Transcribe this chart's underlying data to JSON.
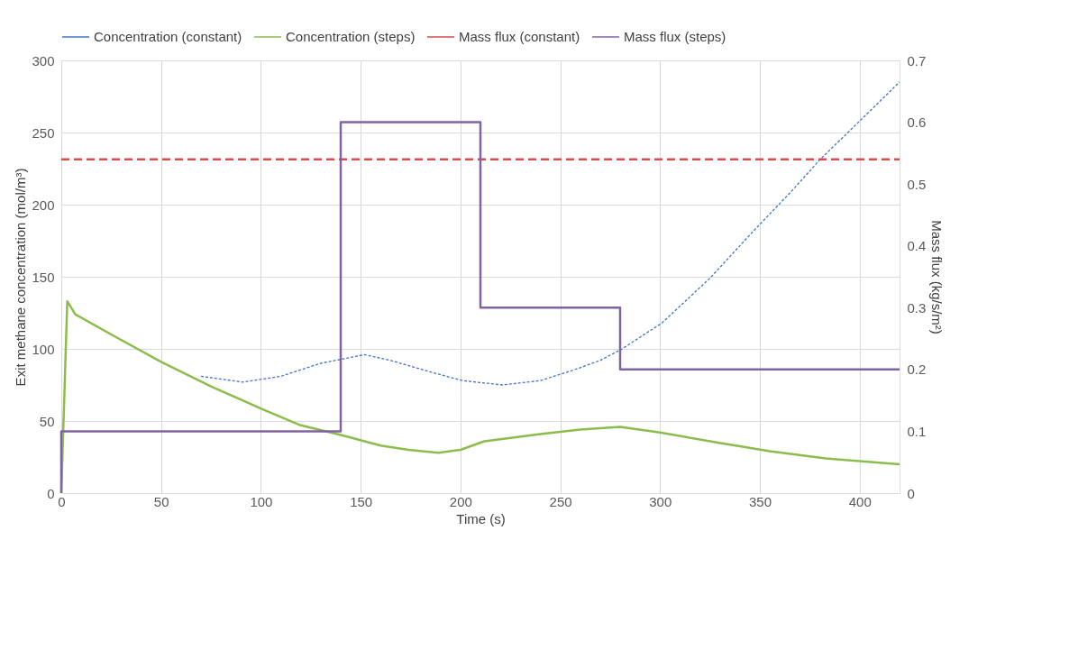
{
  "chart_data": {
    "type": "line",
    "xlabel": "Time (s)",
    "ylabel": "Exit methane concentration (mol/m³)",
    "y2label": "Mass flux (kg/s/m²)",
    "xlim": [
      0,
      420
    ],
    "xticks": [
      0,
      50,
      100,
      150,
      200,
      250,
      300,
      350,
      400
    ],
    "ylim": [
      0,
      300
    ],
    "yticks": [
      0,
      50,
      100,
      150,
      200,
      250,
      300
    ],
    "y2lim": [
      0,
      0.7
    ],
    "y2ticks": [
      0,
      0.1,
      0.2,
      0.3,
      0.4,
      0.5,
      0.6,
      0.7
    ],
    "grid": true,
    "legend": "top",
    "series": [
      {
        "name": "Concentration (constant)",
        "color": "#4472c4",
        "line_style": "dotted",
        "x": [
          70,
          91,
          110,
          130,
          152,
          165,
          185,
          201,
          221,
          240,
          256,
          270,
          281,
          301,
          325,
          347,
          365,
          380,
          403,
          420
        ],
        "values": [
          81,
          77,
          81,
          90,
          96,
          92,
          84,
          78,
          75,
          78,
          85,
          92,
          100,
          118,
          149,
          182,
          208,
          231,
          262,
          285
        ]
      },
      {
        "name": "Concentration (steps)",
        "color": "#8cbd4c",
        "line_style": "solid",
        "x": [
          0,
          3,
          7,
          25,
          50,
          75,
          101,
          120,
          141,
          160,
          174,
          189,
          200,
          210,
          212,
          240,
          260,
          280,
          300,
          329,
          355,
          383,
          420
        ],
        "values": [
          0,
          133,
          124,
          110,
          91,
          74,
          58,
          47,
          40,
          33,
          30,
          28,
          30,
          35,
          36,
          41,
          44,
          46,
          42,
          35,
          29,
          24,
          20
        ]
      },
      {
        "name": "Mass flux (constant)",
        "color": "#d0504d",
        "line_style": "dashed",
        "axis": "y2",
        "x": [
          0,
          420
        ],
        "values": [
          0.54,
          0.54
        ]
      },
      {
        "name": "Mass flux (steps)",
        "color": "#8064a2",
        "line_style": "solid",
        "axis": "y2",
        "x": [
          0,
          0,
          140,
          140,
          210,
          210,
          280,
          280,
          420
        ],
        "values": [
          0,
          0.1,
          0.1,
          0.6,
          0.6,
          0.3,
          0.3,
          0.2,
          0.2
        ]
      }
    ]
  }
}
